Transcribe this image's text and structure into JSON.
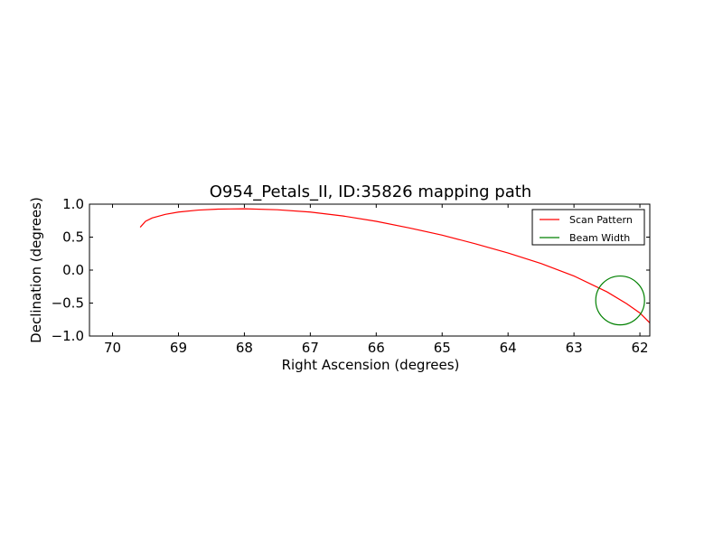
{
  "chart_data": {
    "type": "line",
    "title": "O954_Petals_II, ID:35826 mapping path",
    "xlabel": "Right Ascension (degrees)",
    "ylabel": "Declination (degrees)",
    "xlim": [
      70.35,
      61.85
    ],
    "ylim": [
      -1.0,
      1.0
    ],
    "x_reversed": true,
    "grid": false,
    "legend_position": "top-right",
    "xticks": [
      70,
      69,
      68,
      67,
      66,
      65,
      64,
      63,
      62
    ],
    "xtick_labels": [
      "70",
      "69",
      "68",
      "67",
      "66",
      "65",
      "64",
      "63",
      "62"
    ],
    "yticks": [
      1.0,
      0.5,
      0.0,
      -0.5,
      -1.0
    ],
    "ytick_labels": [
      "1.0",
      "0.5",
      "0.0",
      "−0.5",
      "−1.0"
    ],
    "series": [
      {
        "name": "Scan Pattern",
        "color": "#ff0000",
        "style": "line",
        "x": [
          69.58,
          69.5,
          69.4,
          69.2,
          69.0,
          68.7,
          68.4,
          68.0,
          67.5,
          67.0,
          66.5,
          66.0,
          65.5,
          65.0,
          64.5,
          64.0,
          63.5,
          63.0,
          62.5,
          62.2,
          62.0,
          61.85
        ],
        "y": [
          0.65,
          0.74,
          0.79,
          0.845,
          0.88,
          0.91,
          0.925,
          0.93,
          0.915,
          0.88,
          0.82,
          0.74,
          0.64,
          0.53,
          0.4,
          0.26,
          0.1,
          -0.09,
          -0.33,
          -0.51,
          -0.65,
          -0.8
        ]
      },
      {
        "name": "Beam Width",
        "color": "#008000",
        "style": "circle",
        "center": [
          62.3,
          -0.46
        ],
        "radius": 0.37
      }
    ]
  }
}
